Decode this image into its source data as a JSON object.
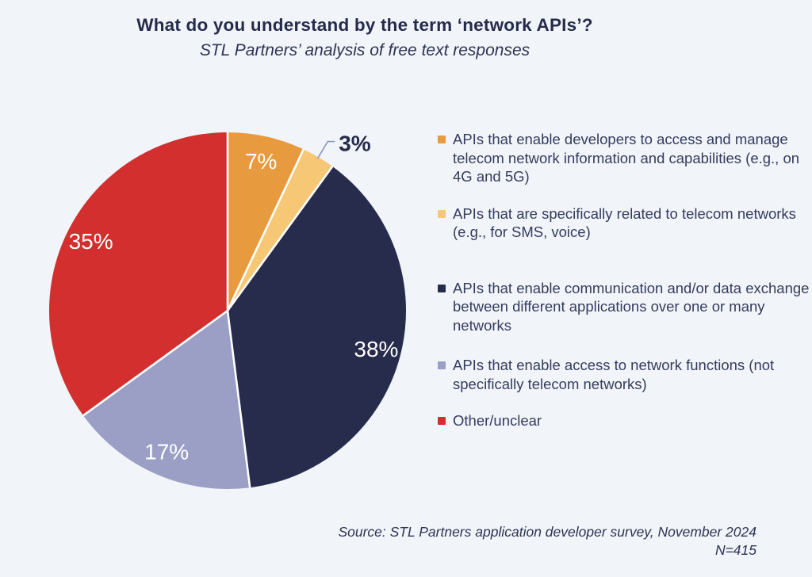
{
  "page": {
    "background": "#F1F5F9",
    "title": "What do you understand by the term ‘network APIs’?",
    "subtitle": "STL Partners’ analysis of free text responses",
    "source_line1": "Source: STL Partners application developer survey, November 2024",
    "source_line2": "N=415"
  },
  "colors": {
    "text_dark": "#262B4C",
    "legend_text": "#353B5E",
    "leader_line": "#8D96B8",
    "slice_separator": "#FFFFFF"
  },
  "chart_data": {
    "type": "pie",
    "title": "What do you understand by the term ‘network APIs’?",
    "subtitle": "STL Partners’ analysis of free text responses",
    "n_label": "N=415",
    "start_angle_deg": 0,
    "direction": "clockwise",
    "legend_position": "right",
    "categories": [
      "APIs that enable developers to access and manage telecom network information and capabilities (e.g., on 4G and 5G)",
      "APIs that are specifically related to telecom networks (e.g., for SMS, voice)",
      "APIs that enable communication and/or data exchange between different applications over one or many networks",
      "APIs that enable access to network functions (not specifically telecom networks)",
      "Other/unclear"
    ],
    "values": [
      7,
      3,
      38,
      17,
      35
    ],
    "slices": [
      {
        "label": "APIs that enable developers to access and manage telecom network information and capabilities (e.g., on 4G and 5G)",
        "value": 7,
        "display": "7%",
        "color": "#E89A3E",
        "label_placement": "inside",
        "label_color": "#FFFFFF"
      },
      {
        "label": "APIs that are specifically related to telecom networks (e.g., for SMS, voice)",
        "value": 3,
        "display": "3%",
        "color": "#F6C876",
        "label_placement": "outside",
        "label_color": "#262B4C"
      },
      {
        "label": "APIs that enable communication and/or data exchange between different applications over one or many networks",
        "value": 38,
        "display": "38%",
        "color": "#282C4C",
        "label_placement": "inside",
        "label_color": "#FFFFFF"
      },
      {
        "label": "APIs that enable access to network functions (not specifically telecom networks)",
        "value": 17,
        "display": "17%",
        "color": "#9B9FC5",
        "label_placement": "inside",
        "label_color": "#FFFFFF"
      },
      {
        "label": "Other/unclear",
        "value": 35,
        "display": "35%",
        "color": "#D32F2F",
        "label_placement": "inside",
        "label_color": "#FFFFFF"
      }
    ]
  }
}
